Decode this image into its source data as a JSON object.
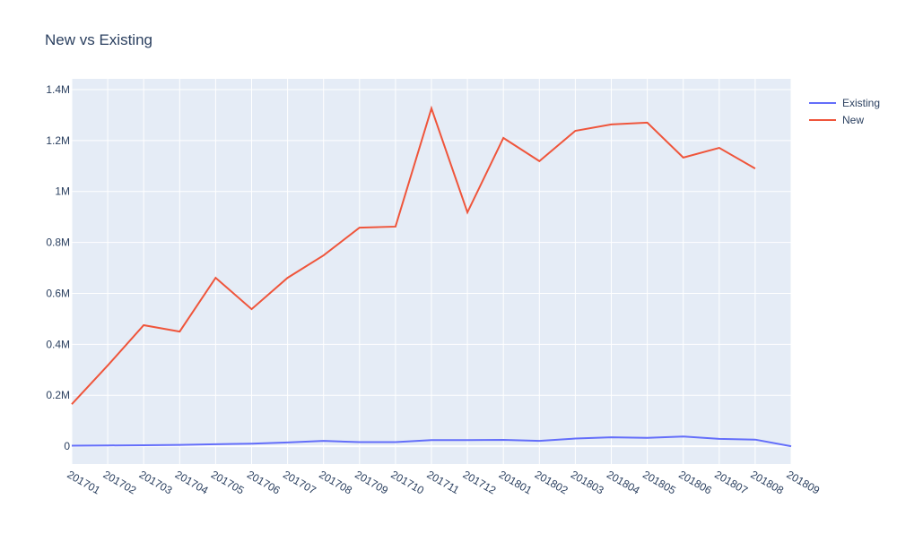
{
  "chart_data": {
    "type": "line",
    "title": "New vs Existing",
    "categories": [
      "201701",
      "201702",
      "201703",
      "201704",
      "201705",
      "201706",
      "201707",
      "201708",
      "201709",
      "201710",
      "201711",
      "201712",
      "201801",
      "201802",
      "201803",
      "201804",
      "201805",
      "201806",
      "201807",
      "201808",
      "201809"
    ],
    "series": [
      {
        "name": "Existing",
        "color": "#636efa",
        "values": [
          2000,
          3000,
          4000,
          5000,
          8000,
          10000,
          15000,
          21000,
          16000,
          16000,
          24000,
          24000,
          25000,
          21000,
          30000,
          35000,
          33000,
          38000,
          29000,
          26000,
          0
        ]
      },
      {
        "name": "New",
        "color": "#ef553b",
        "values": [
          165000,
          317000,
          475000,
          450000,
          661000,
          538000,
          661000,
          749000,
          858000,
          862000,
          1326000,
          918000,
          1210000,
          1119000,
          1238000,
          1263000,
          1270000,
          1133000,
          1171000,
          1090000,
          null
        ]
      }
    ],
    "ylim": [
      -70000,
      1442000
    ],
    "yticks": [
      0,
      {
        "value": 200000,
        "label": "0.2M"
      },
      {
        "value": 400000,
        "label": "0.4M"
      },
      {
        "value": 600000,
        "label": "0.6M"
      },
      {
        "value": 800000,
        "label": "0.8M"
      },
      {
        "value": 1000000,
        "label": "1M"
      },
      {
        "value": 1200000,
        "label": "1.2M"
      },
      {
        "value": 1400000,
        "label": "1.4M"
      }
    ],
    "grid": true,
    "legend": "right"
  }
}
